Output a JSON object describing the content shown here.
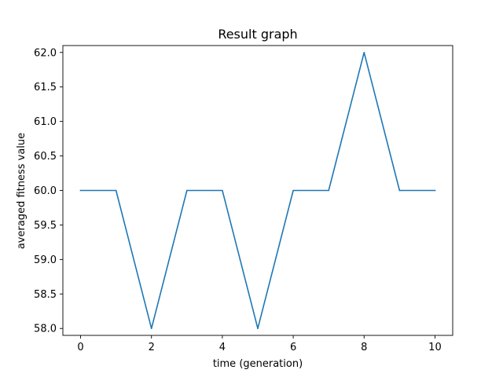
{
  "chart_data": {
    "type": "line",
    "title": "Result graph",
    "xlabel": "time (generation)",
    "ylabel": "averaged fitness value",
    "xlim": [
      -0.5,
      10.5
    ],
    "ylim": [
      57.9,
      62.1
    ],
    "xticks": [
      0,
      2,
      4,
      6,
      8,
      10
    ],
    "xtick_labels": [
      "0",
      "2",
      "4",
      "6",
      "8",
      "10"
    ],
    "yticks": [
      58.0,
      58.5,
      59.0,
      59.5,
      60.0,
      60.5,
      61.0,
      61.5,
      62.0
    ],
    "ytick_labels": [
      "58.0",
      "58.5",
      "59.0",
      "59.5",
      "60.0",
      "60.5",
      "61.0",
      "61.5",
      "62.0"
    ],
    "grid": false,
    "legend": false,
    "colors": {
      "line": "#1f77b4",
      "axes": "#000000",
      "background": "#ffffff"
    },
    "series": [
      {
        "x": [
          0,
          1,
          2,
          3,
          4,
          5,
          6,
          7,
          8,
          9,
          10
        ],
        "values": [
          60,
          60,
          58,
          60,
          60,
          58,
          60,
          60,
          62,
          60,
          60
        ]
      }
    ]
  }
}
